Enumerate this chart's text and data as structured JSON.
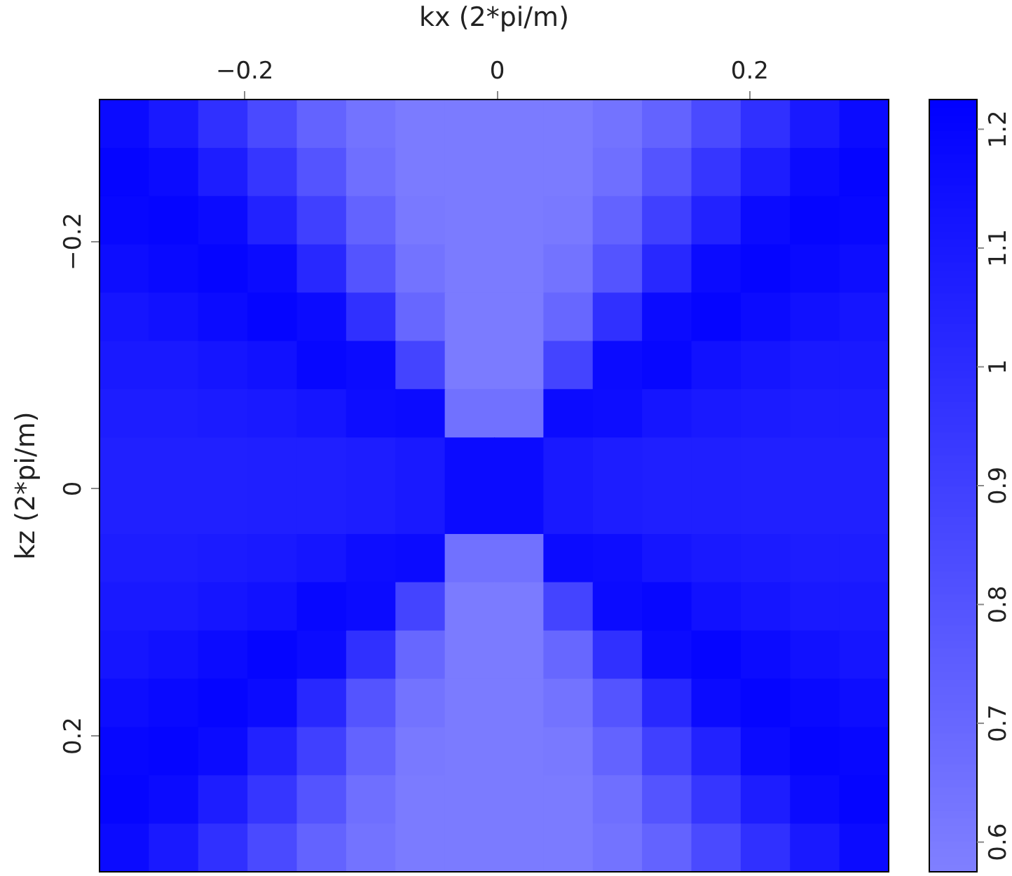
{
  "chart_data": {
    "type": "heatmap",
    "xlabel": "kx (2*pi/m)",
    "ylabel": "kz (2*pi/m)",
    "xlim": [
      -0.315,
      0.31
    ],
    "xticks": [
      {
        "value": -0.2,
        "label": "−0.2"
      },
      0,
      0.2
    ],
    "ylim": [
      0.31,
      -0.315
    ],
    "yticks": [
      {
        "value": -0.2,
        "label": "−0.2"
      },
      0,
      0.2
    ],
    "clim": [
      0.575,
      1.225
    ],
    "cticks": [
      0.6,
      0.7,
      0.8,
      0.9,
      1,
      1.1,
      1.2
    ],
    "cells": [
      [
        1.17,
        1.1,
        0.98,
        0.85,
        0.72,
        0.64,
        0.6,
        0.6,
        0.6,
        0.6,
        0.64,
        0.72,
        0.85,
        0.98,
        1.1,
        1.17
      ],
      [
        1.2,
        1.17,
        1.08,
        0.95,
        0.8,
        0.66,
        0.6,
        0.6,
        0.6,
        0.6,
        0.66,
        0.8,
        0.95,
        1.08,
        1.17,
        1.2
      ],
      [
        1.19,
        1.2,
        1.17,
        1.05,
        0.9,
        0.72,
        0.61,
        0.6,
        0.6,
        0.61,
        0.72,
        0.9,
        1.05,
        1.17,
        1.2,
        1.19
      ],
      [
        1.16,
        1.18,
        1.2,
        1.17,
        1.02,
        0.8,
        0.64,
        0.6,
        0.6,
        0.64,
        0.8,
        1.02,
        1.17,
        1.2,
        1.18,
        1.16
      ],
      [
        1.12,
        1.14,
        1.17,
        1.2,
        1.17,
        0.98,
        0.7,
        0.6,
        0.6,
        0.7,
        0.98,
        1.17,
        1.2,
        1.17,
        1.14,
        1.12
      ],
      [
        1.1,
        1.1,
        1.12,
        1.14,
        1.19,
        1.17,
        0.88,
        0.6,
        0.6,
        0.88,
        1.17,
        1.19,
        1.14,
        1.12,
        1.1,
        1.1
      ],
      [
        1.08,
        1.08,
        1.09,
        1.1,
        1.12,
        1.16,
        1.17,
        0.65,
        0.65,
        1.17,
        1.16,
        1.12,
        1.1,
        1.09,
        1.08,
        1.08
      ],
      [
        1.06,
        1.06,
        1.06,
        1.07,
        1.07,
        1.08,
        1.1,
        1.17,
        1.17,
        1.1,
        1.08,
        1.07,
        1.07,
        1.06,
        1.06,
        1.06
      ],
      [
        1.06,
        1.06,
        1.06,
        1.07,
        1.07,
        1.08,
        1.1,
        1.17,
        1.17,
        1.1,
        1.08,
        1.07,
        1.07,
        1.06,
        1.06,
        1.06
      ],
      [
        1.08,
        1.08,
        1.09,
        1.1,
        1.12,
        1.16,
        1.17,
        0.65,
        0.65,
        1.17,
        1.16,
        1.12,
        1.1,
        1.09,
        1.08,
        1.08
      ],
      [
        1.1,
        1.1,
        1.12,
        1.14,
        1.19,
        1.17,
        0.88,
        0.6,
        0.6,
        0.88,
        1.17,
        1.19,
        1.14,
        1.12,
        1.1,
        1.1
      ],
      [
        1.12,
        1.14,
        1.17,
        1.2,
        1.17,
        0.98,
        0.7,
        0.6,
        0.6,
        0.7,
        0.98,
        1.17,
        1.2,
        1.17,
        1.14,
        1.12
      ],
      [
        1.16,
        1.18,
        1.2,
        1.17,
        1.02,
        0.8,
        0.64,
        0.6,
        0.6,
        0.64,
        0.8,
        1.02,
        1.17,
        1.2,
        1.18,
        1.16
      ],
      [
        1.19,
        1.2,
        1.17,
        1.05,
        0.9,
        0.72,
        0.61,
        0.6,
        0.6,
        0.61,
        0.72,
        0.9,
        1.05,
        1.17,
        1.2,
        1.19
      ],
      [
        1.2,
        1.17,
        1.08,
        0.95,
        0.8,
        0.66,
        0.6,
        0.6,
        0.6,
        0.6,
        0.66,
        0.8,
        0.95,
        1.08,
        1.17,
        1.2
      ],
      [
        1.17,
        1.1,
        0.98,
        0.85,
        0.72,
        0.64,
        0.6,
        0.6,
        0.6,
        0.6,
        0.64,
        0.72,
        0.85,
        0.98,
        1.1,
        1.17
      ]
    ]
  }
}
